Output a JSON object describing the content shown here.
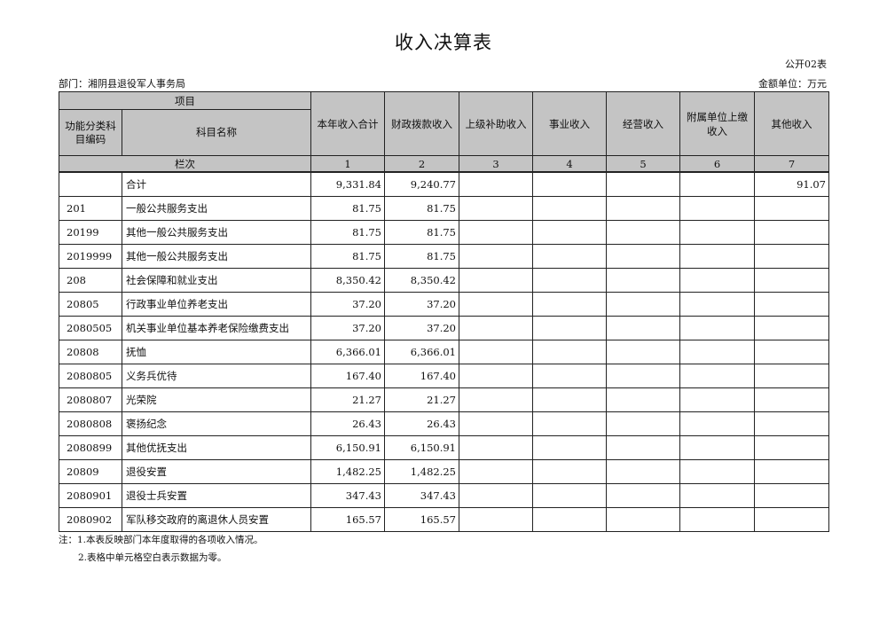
{
  "title": "收入决算表",
  "code": "公开02表",
  "dept": "部门：湘阴县退役军人事务局",
  "unit": "金额单位：万元",
  "header": {
    "item": "项目",
    "func_code": "功能分类科目编码",
    "subject": "科目名称",
    "cols": [
      "本年收入合计",
      "财政拨款收入",
      "上级补助收入",
      "事业收入",
      "经营收入",
      "附属单位上缴收入",
      "其他收入"
    ],
    "seq_label": "栏次",
    "seq": [
      "1",
      "2",
      "3",
      "4",
      "5",
      "6",
      "7"
    ]
  },
  "rows": [
    {
      "code": "",
      "name": "合计",
      "v": [
        "9,331.84",
        "9,240.77",
        "",
        "",
        "",
        "",
        "91.07"
      ]
    },
    {
      "code": "201",
      "name": "一般公共服务支出",
      "v": [
        "81.75",
        "81.75",
        "",
        "",
        "",
        "",
        ""
      ]
    },
    {
      "code": "20199",
      "name": "其他一般公共服务支出",
      "v": [
        "81.75",
        "81.75",
        "",
        "",
        "",
        "",
        ""
      ]
    },
    {
      "code": "2019999",
      "name": "其他一般公共服务支出",
      "v": [
        "81.75",
        "81.75",
        "",
        "",
        "",
        "",
        ""
      ]
    },
    {
      "code": "208",
      "name": "社会保障和就业支出",
      "v": [
        "8,350.42",
        "8,350.42",
        "",
        "",
        "",
        "",
        ""
      ]
    },
    {
      "code": "20805",
      "name": "行政事业单位养老支出",
      "v": [
        "37.20",
        "37.20",
        "",
        "",
        "",
        "",
        ""
      ]
    },
    {
      "code": "2080505",
      "name": "机关事业单位基本养老保险缴费支出",
      "v": [
        "37.20",
        "37.20",
        "",
        "",
        "",
        "",
        ""
      ]
    },
    {
      "code": "20808",
      "name": "抚恤",
      "v": [
        "6,366.01",
        "6,366.01",
        "",
        "",
        "",
        "",
        ""
      ]
    },
    {
      "code": "2080805",
      "name": "义务兵优待",
      "v": [
        "167.40",
        "167.40",
        "",
        "",
        "",
        "",
        ""
      ]
    },
    {
      "code": "2080807",
      "name": "光荣院",
      "v": [
        "21.27",
        "21.27",
        "",
        "",
        "",
        "",
        ""
      ]
    },
    {
      "code": "2080808",
      "name": "褒扬纪念",
      "v": [
        "26.43",
        "26.43",
        "",
        "",
        "",
        "",
        ""
      ]
    },
    {
      "code": "2080899",
      "name": "其他优抚支出",
      "v": [
        "6,150.91",
        "6,150.91",
        "",
        "",
        "",
        "",
        ""
      ]
    },
    {
      "code": "20809",
      "name": "退役安置",
      "v": [
        "1,482.25",
        "1,482.25",
        "",
        "",
        "",
        "",
        ""
      ]
    },
    {
      "code": "2080901",
      "name": "退役士兵安置",
      "v": [
        "347.43",
        "347.43",
        "",
        "",
        "",
        "",
        ""
      ]
    },
    {
      "code": "2080902",
      "name": "军队移交政府的离退休人员安置",
      "v": [
        "165.57",
        "165.57",
        "",
        "",
        "",
        "",
        ""
      ]
    }
  ],
  "notes": [
    "注：1.本表反映部门本年度取得的各项收入情况。",
    "2.表格中单元格空白表示数据为零。"
  ]
}
